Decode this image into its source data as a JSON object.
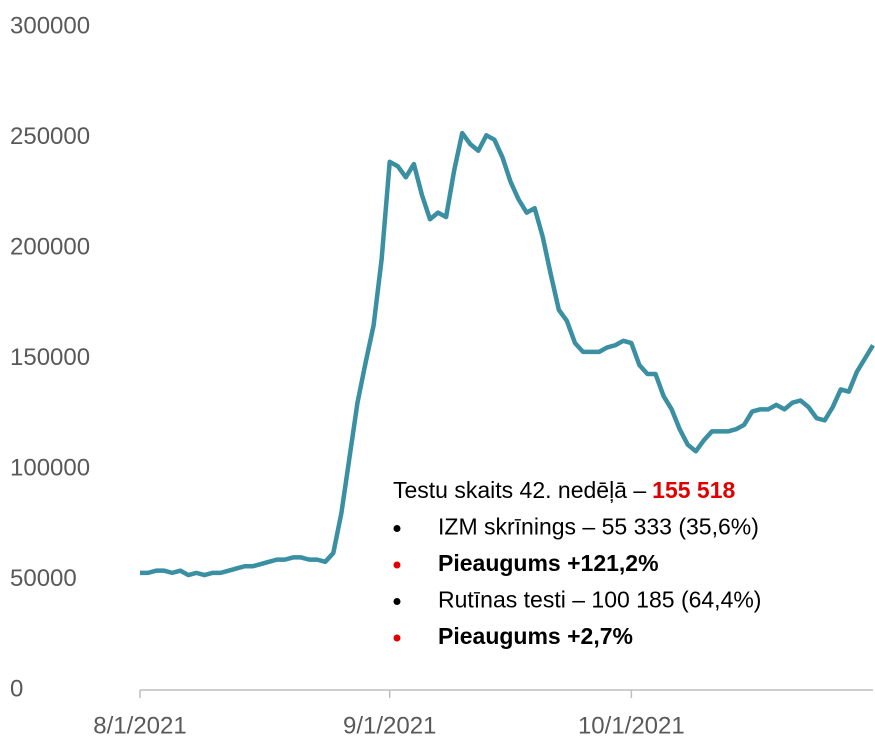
{
  "chart_data": {
    "type": "line",
    "x": [
      "8/1/2021",
      "8/2/2021",
      "8/3/2021",
      "8/4/2021",
      "8/5/2021",
      "8/6/2021",
      "8/7/2021",
      "8/8/2021",
      "8/9/2021",
      "8/10/2021",
      "8/11/2021",
      "8/12/2021",
      "8/13/2021",
      "8/14/2021",
      "8/15/2021",
      "8/16/2021",
      "8/17/2021",
      "8/18/2021",
      "8/19/2021",
      "8/20/2021",
      "8/21/2021",
      "8/22/2021",
      "8/23/2021",
      "8/24/2021",
      "8/25/2021",
      "8/26/2021",
      "8/27/2021",
      "8/28/2021",
      "8/29/2021",
      "8/30/2021",
      "8/31/2021",
      "9/1/2021",
      "9/2/2021",
      "9/3/2021",
      "9/4/2021",
      "9/5/2021",
      "9/6/2021",
      "9/7/2021",
      "9/8/2021",
      "9/9/2021",
      "9/10/2021",
      "9/11/2021",
      "9/12/2021",
      "9/13/2021",
      "9/14/2021",
      "9/15/2021",
      "9/16/2021",
      "9/17/2021",
      "9/18/2021",
      "9/19/2021",
      "9/20/2021",
      "9/21/2021",
      "9/22/2021",
      "9/23/2021",
      "9/24/2021",
      "9/25/2021",
      "9/26/2021",
      "9/27/2021",
      "9/28/2021",
      "9/29/2021",
      "9/30/2021",
      "10/1/2021",
      "10/2/2021",
      "10/3/2021",
      "10/4/2021",
      "10/5/2021",
      "10/6/2021",
      "10/7/2021",
      "10/8/2021",
      "10/9/2021",
      "10/10/2021",
      "10/11/2021",
      "10/12/2021",
      "10/13/2021",
      "10/14/2021",
      "10/15/2021",
      "10/16/2021",
      "10/17/2021",
      "10/18/2021",
      "10/19/2021",
      "10/20/2021",
      "10/21/2021",
      "10/22/2021",
      "10/23/2021",
      "10/24/2021",
      "10/25/2021",
      "10/26/2021",
      "10/27/2021",
      "10/28/2021",
      "10/29/2021",
      "10/30/2021",
      "10/31/2021"
    ],
    "series": [
      {
        "color": "#3a8fa3",
        "values": [
          53000,
          53000,
          54000,
          54000,
          53000,
          54000,
          52000,
          53000,
          52000,
          53000,
          53000,
          54000,
          55000,
          56000,
          56000,
          57000,
          58000,
          59000,
          59000,
          60000,
          60000,
          59000,
          59000,
          58000,
          62000,
          80000,
          105000,
          130000,
          148000,
          165000,
          195000,
          239000,
          237000,
          232000,
          238000,
          224000,
          213000,
          216000,
          214000,
          235000,
          252000,
          247000,
          244000,
          251000,
          249000,
          241000,
          230000,
          222000,
          216000,
          218000,
          205000,
          188000,
          172000,
          167000,
          157000,
          153000,
          153000,
          153000,
          155000,
          156000,
          158000,
          157000,
          147000,
          143000,
          143000,
          133000,
          127000,
          118000,
          111000,
          108000,
          113000,
          117000,
          117000,
          117000,
          118000,
          120000,
          126000,
          127000,
          127000,
          129000,
          127000,
          130000,
          131000,
          128000,
          123000,
          122000,
          128000,
          136000,
          135000,
          144000,
          150000,
          156000
        ]
      }
    ],
    "xticks": [
      "8/1/2021",
      "9/1/2021",
      "10/1/2021"
    ],
    "ylim": [
      0,
      300000
    ],
    "yticks": [
      0,
      50000,
      100000,
      150000,
      200000,
      250000,
      300000
    ],
    "grid": false,
    "annotation": {
      "title": "Testu skaits 42. nedēļā –",
      "title_value": "155 518",
      "title_value_color": "#e00000",
      "bullets": [
        {
          "text": "IZM skrīnings – 55 333 (35,6%)",
          "color": "#000000",
          "bold": false
        },
        {
          "text": "Pieaugums +121,2%",
          "color": "#e00000",
          "bold": true
        },
        {
          "text": "Rutīnas testi – 100 185 (64,4%)",
          "color": "#000000",
          "bold": false
        },
        {
          "text": "Pieaugums +2,7%",
          "color": "#e00000",
          "bold": true
        }
      ]
    }
  }
}
